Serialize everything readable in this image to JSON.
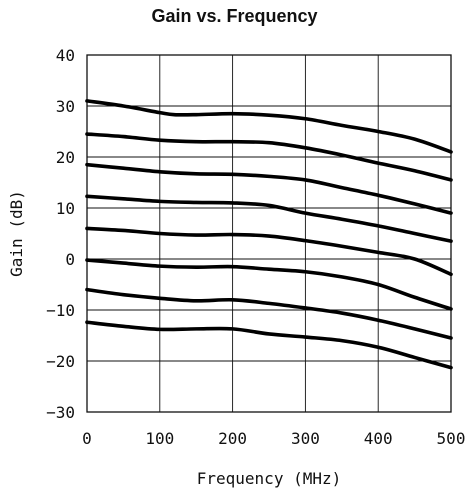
{
  "chart_data": {
    "type": "line",
    "title": "Gain vs. Frequency",
    "xlabel": "Frequency (MHz)",
    "ylabel": "Gain (dB)",
    "xlim": [
      0,
      500
    ],
    "ylim": [
      -30,
      40
    ],
    "xticks": [
      "0",
      "100",
      "200",
      "300",
      "400",
      "500"
    ],
    "yticks": [
      "40",
      "30",
      "20",
      "10",
      "0",
      "−10",
      "−20",
      "−30"
    ],
    "grid": true,
    "series": [
      {
        "x": [
          0,
          50,
          100,
          120,
          150,
          200,
          250,
          300,
          350,
          400,
          450,
          500
        ],
        "y": [
          31,
          30,
          28.7,
          28.3,
          28.3,
          28.5,
          28.2,
          27.5,
          26.2,
          25,
          23.5,
          21
        ]
      },
      {
        "x": [
          0,
          50,
          100,
          150,
          200,
          250,
          300,
          350,
          400,
          450,
          500
        ],
        "y": [
          24.5,
          24,
          23.3,
          23,
          23,
          22.8,
          21.8,
          20.4,
          18.8,
          17.3,
          15.5
        ]
      },
      {
        "x": [
          0,
          50,
          100,
          150,
          200,
          250,
          300,
          350,
          400,
          450,
          500
        ],
        "y": [
          18.5,
          17.8,
          17.1,
          16.7,
          16.6,
          16.2,
          15.5,
          14,
          12.5,
          10.8,
          9
        ]
      },
      {
        "x": [
          0,
          50,
          100,
          150,
          200,
          250,
          300,
          350,
          400,
          450,
          500
        ],
        "y": [
          12.3,
          11.8,
          11.3,
          11.1,
          11,
          10.5,
          9,
          7.8,
          6.5,
          5,
          3.5
        ]
      },
      {
        "x": [
          0,
          50,
          100,
          150,
          200,
          250,
          300,
          350,
          400,
          450,
          500
        ],
        "y": [
          6,
          5.6,
          5,
          4.7,
          4.8,
          4.5,
          3.6,
          2.5,
          1.3,
          0,
          -3
        ]
      },
      {
        "x": [
          0,
          50,
          100,
          150,
          200,
          250,
          300,
          350,
          400,
          450,
          500
        ],
        "y": [
          -0.2,
          -0.8,
          -1.4,
          -1.6,
          -1.5,
          -2,
          -2.5,
          -3.5,
          -5,
          -7.5,
          -9.8
        ]
      },
      {
        "x": [
          0,
          50,
          100,
          150,
          200,
          250,
          300,
          350,
          400,
          450,
          500
        ],
        "y": [
          -6,
          -7,
          -7.7,
          -8.2,
          -8,
          -8.7,
          -9.6,
          -10.6,
          -12,
          -13.7,
          -15.5
        ]
      },
      {
        "x": [
          0,
          50,
          100,
          150,
          200,
          250,
          300,
          350,
          400,
          450,
          500
        ],
        "y": [
          -12.4,
          -13.2,
          -13.8,
          -13.7,
          -13.7,
          -14.7,
          -15.3,
          -16,
          -17.3,
          -19.3,
          -21.3
        ]
      }
    ]
  }
}
